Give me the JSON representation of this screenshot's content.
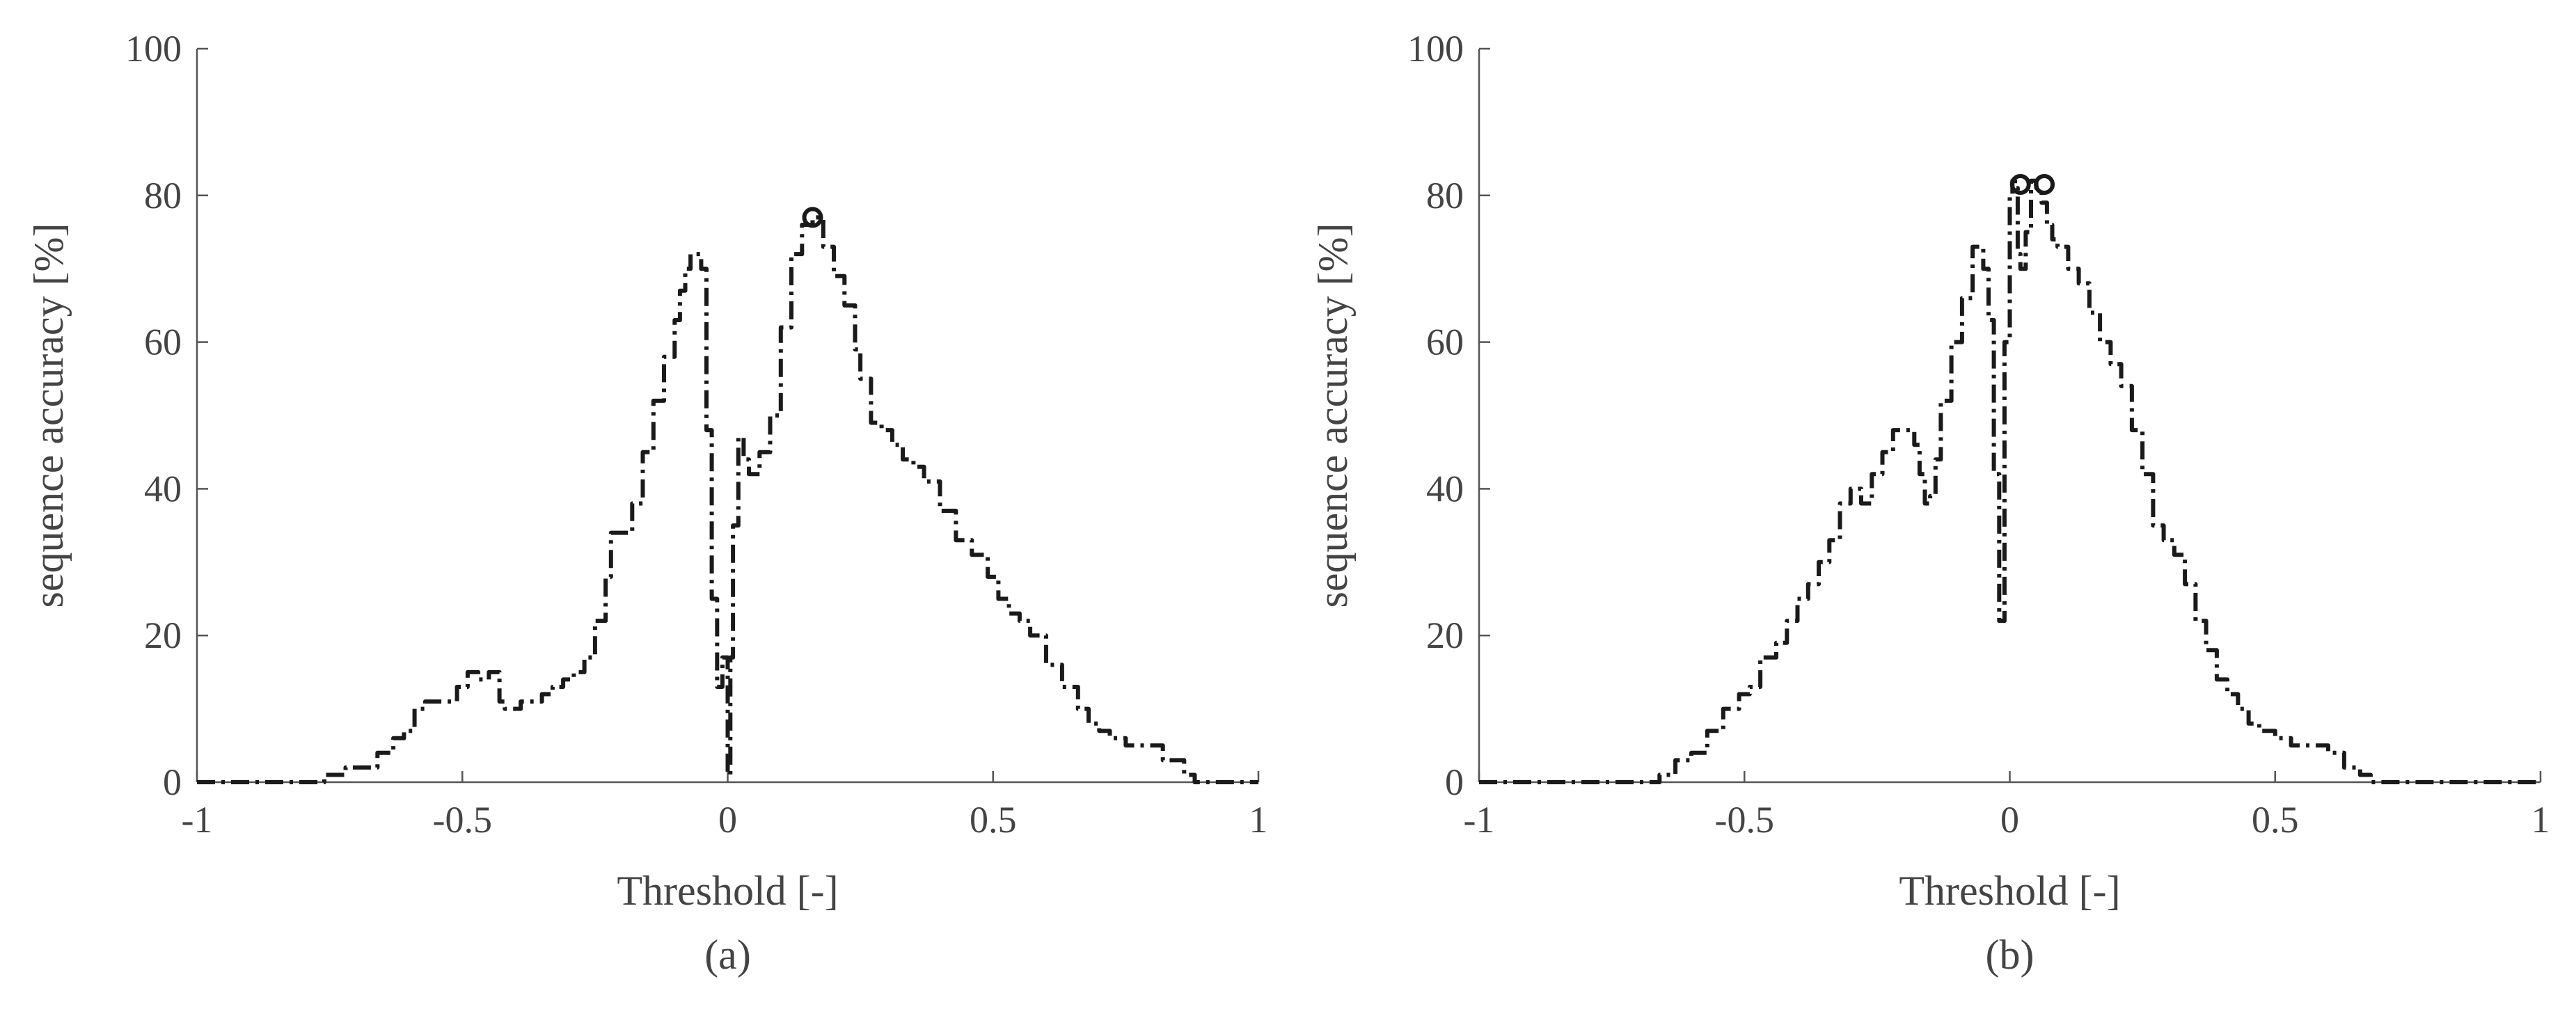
{
  "chart_data": [
    {
      "type": "line",
      "panel_label": "(a)",
      "xlabel": "Threshold [-]",
      "ylabel": "sequence accuracy [%]",
      "xlim": [
        -1,
        1
      ],
      "ylim": [
        0,
        100
      ],
      "xticks": [
        -1,
        -0.5,
        0,
        0.5,
        1
      ],
      "xtick_labels": [
        "-1",
        "-0.5",
        "0",
        "0.5",
        "1"
      ],
      "yticks": [
        0,
        20,
        40,
        60,
        80,
        100
      ],
      "ytick_labels": [
        "0",
        "20",
        "40",
        "60",
        "80",
        "100"
      ],
      "line_style": "dash-dot",
      "color": "#1a1a1a",
      "series": [
        {
          "x": [
            -1,
            -0.78,
            -0.76,
            -0.72,
            -0.68,
            -0.66,
            -0.63,
            -0.61,
            -0.59,
            -0.57,
            -0.55,
            -0.53,
            -0.51,
            -0.49,
            -0.47,
            -0.45,
            -0.43,
            -0.42,
            -0.41,
            -0.39,
            -0.37,
            -0.35,
            -0.33,
            -0.31,
            -0.29,
            -0.27,
            -0.25,
            -0.23,
            -0.22,
            -0.2,
            -0.18,
            -0.16,
            -0.14,
            -0.12,
            -0.1,
            -0.09,
            -0.08,
            -0.07,
            -0.06,
            -0.05,
            -0.04,
            -0.03,
            -0.02,
            -0.01,
            0,
            0.005,
            0.01,
            0.02,
            0.03,
            0.04,
            0.06,
            0.08,
            0.1,
            0.12,
            0.14,
            0.16,
            0.18,
            0.2,
            0.22,
            0.24,
            0.25,
            0.26,
            0.27,
            0.29,
            0.31,
            0.33,
            0.35,
            0.37,
            0.4,
            0.43,
            0.46,
            0.49,
            0.51,
            0.53,
            0.55,
            0.57,
            0.6,
            0.63,
            0.66,
            0.68,
            0.7,
            0.72,
            0.75,
            0.78,
            0.82,
            0.86,
            0.88,
            0.9,
            0.92,
            1
          ],
          "y": [
            0,
            0,
            1,
            2,
            2,
            4,
            6,
            7,
            10,
            11,
            11,
            11,
            13,
            15,
            14,
            15,
            11,
            10,
            10,
            11,
            11,
            12,
            13,
            14,
            15,
            17,
            22,
            28,
            34,
            34,
            38,
            45,
            52,
            58,
            63,
            67,
            70,
            72,
            72,
            70,
            48,
            25,
            13,
            17,
            1,
            17,
            35,
            47,
            44,
            42,
            45,
            50,
            62,
            72,
            76,
            77,
            73,
            69,
            65,
            59,
            55,
            55,
            49,
            48,
            46,
            44,
            43,
            41,
            37,
            33,
            31,
            28,
            25,
            23,
            22,
            20,
            16,
            13,
            10,
            8,
            7,
            6,
            5,
            5,
            3,
            1,
            0,
            0,
            0,
            0
          ]
        }
      ],
      "marker_points": [
        {
          "x": 0.16,
          "y": 77
        }
      ]
    },
    {
      "type": "line",
      "panel_label": "(b)",
      "xlabel": "Threshold [-]",
      "ylabel": "sequence accuracy [%]",
      "xlim": [
        -1,
        1
      ],
      "ylim": [
        0,
        100
      ],
      "xticks": [
        -1,
        -0.5,
        0,
        0.5,
        1
      ],
      "xtick_labels": [
        "-1",
        "-0.5",
        "0",
        "0.5",
        "1"
      ],
      "yticks": [
        0,
        20,
        40,
        60,
        80,
        100
      ],
      "ytick_labels": [
        "0",
        "20",
        "40",
        "60",
        "80",
        "100"
      ],
      "line_style": "dash-dot",
      "color": "#1a1a1a",
      "series": [
        {
          "x": [
            -1,
            -0.68,
            -0.66,
            -0.63,
            -0.6,
            -0.57,
            -0.54,
            -0.51,
            -0.49,
            -0.47,
            -0.44,
            -0.42,
            -0.4,
            -0.38,
            -0.36,
            -0.34,
            -0.32,
            -0.3,
            -0.28,
            -0.26,
            -0.24,
            -0.22,
            -0.2,
            -0.18,
            -0.17,
            -0.16,
            -0.15,
            -0.14,
            -0.13,
            -0.11,
            -0.09,
            -0.07,
            -0.05,
            -0.04,
            -0.03,
            -0.02,
            -0.01,
            0,
            0.005,
            0.01,
            0.015,
            0.02,
            0.03,
            0.04,
            0.05,
            0.06,
            0.07,
            0.08,
            0.09,
            0.11,
            0.13,
            0.15,
            0.17,
            0.19,
            0.21,
            0.23,
            0.25,
            0.27,
            0.29,
            0.31,
            0.33,
            0.35,
            0.37,
            0.39,
            0.41,
            0.43,
            0.45,
            0.47,
            0.5,
            0.53,
            0.56,
            0.58,
            0.6,
            0.63,
            0.66,
            0.68,
            1
          ],
          "y": [
            0,
            0,
            1,
            3,
            4,
            7,
            10,
            12,
            13,
            17,
            19,
            22,
            25,
            27,
            30,
            33,
            38,
            40,
            38,
            42,
            45,
            48,
            48,
            46,
            42,
            38,
            39,
            44,
            52,
            60,
            66,
            73,
            70,
            63,
            42,
            22,
            60,
            80,
            82,
            81,
            72,
            70,
            75,
            82,
            81,
            79,
            76,
            74,
            73,
            70,
            68,
            64,
            60,
            57,
            54,
            48,
            42,
            35,
            33,
            31,
            27,
            22,
            18,
            14,
            12,
            10,
            8,
            7,
            6,
            5,
            5,
            5,
            4,
            2,
            1,
            0,
            0
          ]
        }
      ],
      "marker_points": [
        {
          "x": 0.02,
          "y": 81.5
        },
        {
          "x": 0.065,
          "y": 81.5
        }
      ]
    }
  ]
}
